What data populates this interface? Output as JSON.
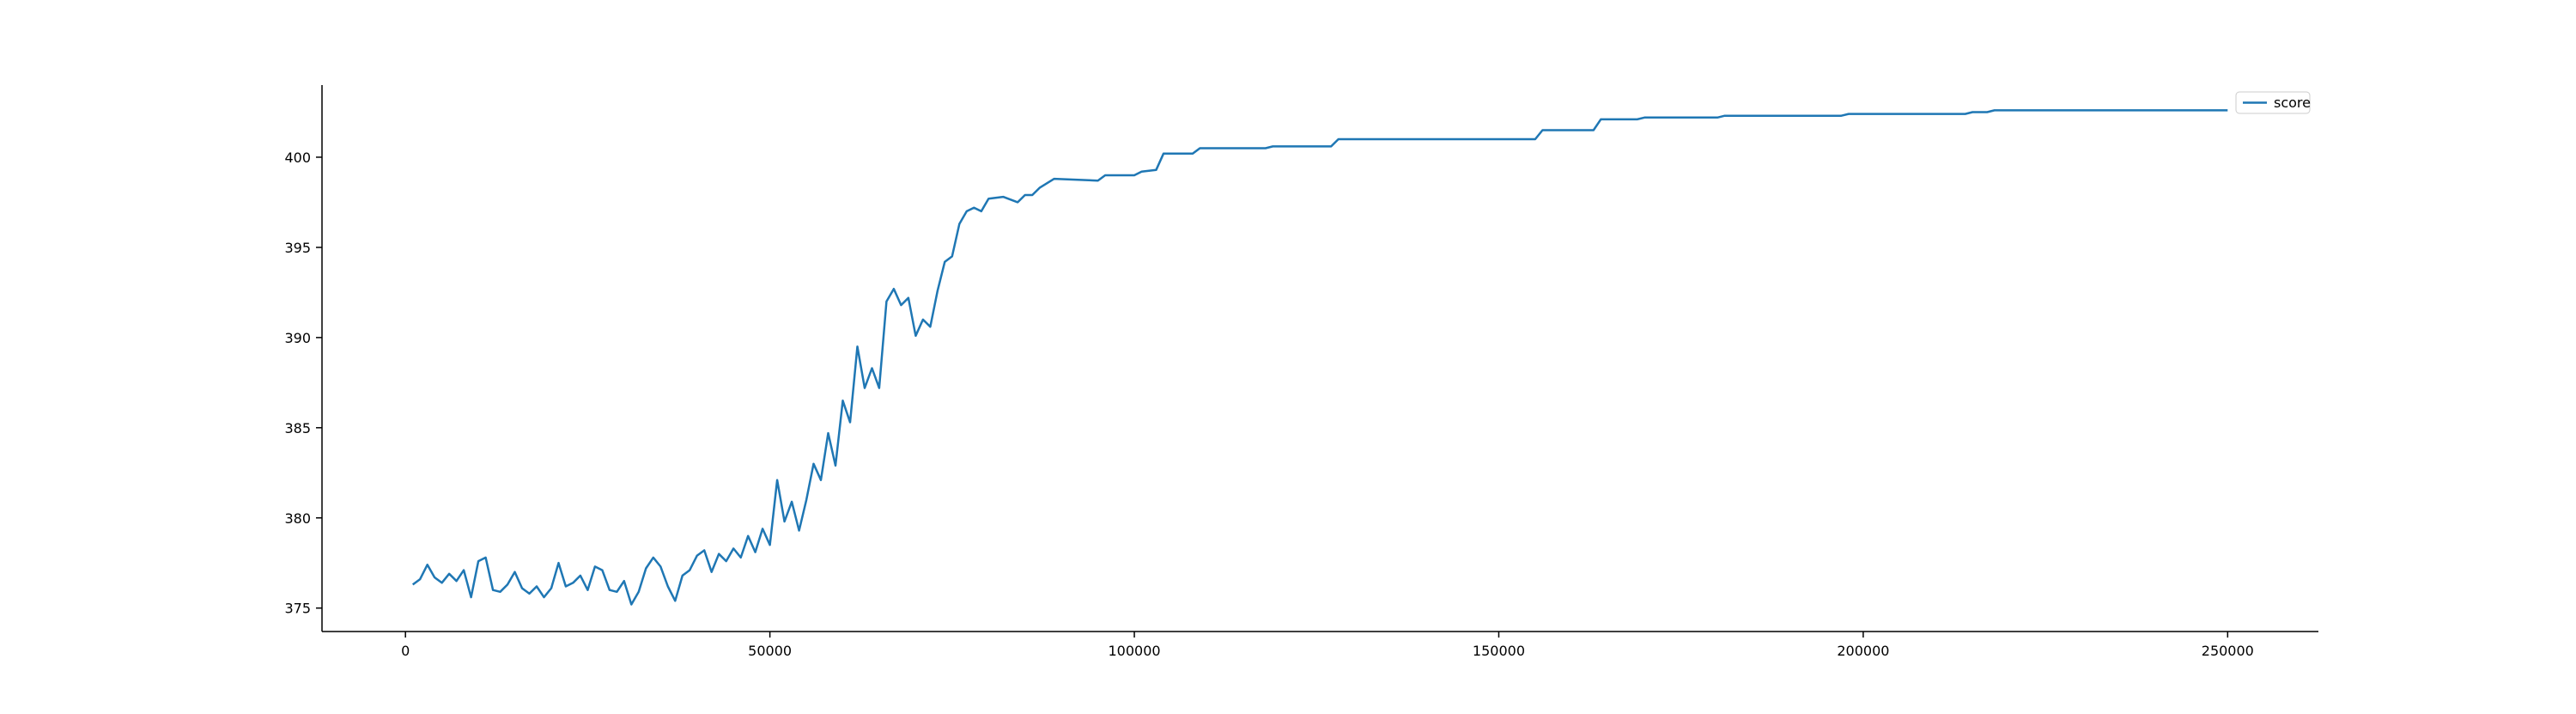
{
  "chart_data": {
    "type": "line",
    "x": [
      1000,
      2000,
      3000,
      4000,
      5000,
      6000,
      7000,
      8000,
      9000,
      10000,
      11000,
      12000,
      13000,
      14000,
      15000,
      16000,
      17000,
      18000,
      19000,
      20000,
      21000,
      22000,
      23000,
      24000,
      25000,
      26000,
      27000,
      28000,
      29000,
      30000,
      31000,
      32000,
      33000,
      34000,
      35000,
      36000,
      37000,
      38000,
      39000,
      40000,
      41000,
      42000,
      43000,
      44000,
      45000,
      46000,
      47000,
      48000,
      49000,
      50000,
      51000,
      52000,
      53000,
      54000,
      55000,
      56000,
      57000,
      58000,
      59000,
      60000,
      61000,
      62000,
      63000,
      64000,
      65000,
      66000,
      67000,
      68000,
      69000,
      70000,
      71000,
      72000,
      73000,
      74000,
      75000,
      76000,
      77000,
      78000,
      79000,
      80000,
      82000,
      84000,
      85000,
      86000,
      87000,
      89000,
      95000,
      96000,
      100000,
      101000,
      103000,
      104000,
      108000,
      109000,
      118000,
      119000,
      127000,
      128000,
      155000,
      156000,
      163000,
      164000,
      169000,
      170000,
      180000,
      181000,
      197000,
      198000,
      214000,
      215000,
      217000,
      218000,
      250000
    ],
    "series": [
      {
        "name": "score",
        "color": "#1f77b4",
        "values": [
          376.3,
          376.6,
          377.4,
          376.7,
          376.4,
          376.9,
          376.5,
          377.1,
          375.6,
          377.6,
          377.8,
          376.0,
          375.9,
          376.3,
          377.0,
          376.1,
          375.8,
          376.2,
          375.6,
          376.1,
          377.5,
          376.2,
          376.4,
          376.8,
          376.0,
          377.3,
          377.1,
          376.0,
          375.9,
          376.5,
          375.2,
          375.9,
          377.2,
          377.8,
          377.3,
          376.2,
          375.4,
          376.8,
          377.1,
          377.9,
          378.2,
          377.0,
          378.0,
          377.6,
          378.3,
          377.8,
          379.0,
          378.1,
          379.4,
          378.5,
          382.1,
          379.8,
          380.9,
          379.3,
          381.0,
          383.0,
          382.1,
          384.7,
          382.9,
          386.5,
          385.3,
          389.5,
          387.2,
          388.3,
          387.2,
          392.0,
          392.7,
          391.8,
          392.2,
          390.1,
          391.0,
          390.6,
          392.6,
          394.2,
          394.5,
          396.3,
          397.0,
          397.2,
          397.0,
          397.7,
          397.8,
          397.5,
          397.9,
          397.9,
          398.3,
          398.8,
          398.7,
          399.0,
          399.0,
          399.2,
          399.3,
          400.2,
          400.2,
          400.5,
          400.5,
          400.6,
          400.6,
          401.0,
          401.0,
          401.5,
          401.5,
          402.1,
          402.1,
          402.2,
          402.2,
          402.3,
          402.3,
          402.4,
          402.4,
          402.5,
          402.5,
          402.6,
          402.6
        ]
      }
    ],
    "xlim": [
      -11450,
      262450
    ],
    "ylim": [
      373.7,
      404.0
    ],
    "xticks": [
      0,
      50000,
      100000,
      150000,
      200000,
      250000
    ],
    "yticks": [
      375,
      380,
      385,
      390,
      395,
      400
    ],
    "legend": "upper right"
  }
}
